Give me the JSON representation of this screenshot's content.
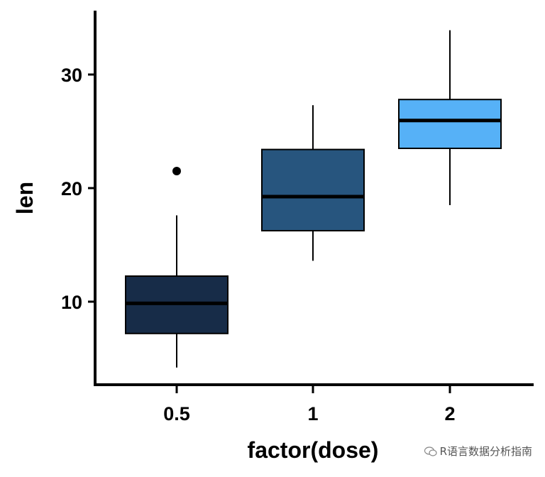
{
  "chart_data": {
    "type": "boxplot",
    "title": "",
    "xlabel": "factor(dose)",
    "ylabel": "len",
    "ylim": [
      2.5,
      36
    ],
    "yticks": [
      10,
      20,
      30
    ],
    "categories": [
      "0.5",
      "1",
      "2"
    ],
    "boxes": [
      {
        "category": "0.5",
        "whisker_low": 4.2,
        "q1": 7.2,
        "median": 9.85,
        "q3": 12.25,
        "whisker_high": 17.6,
        "outliers": [
          21.5
        ],
        "color": "#172c48"
      },
      {
        "category": "1",
        "whisker_low": 13.6,
        "q1": 16.25,
        "median": 19.25,
        "q3": 23.4,
        "whisker_high": 27.3,
        "outliers": [],
        "color": "#27557e"
      },
      {
        "category": "2",
        "whisker_low": 18.5,
        "q1": 23.5,
        "median": 25.95,
        "q3": 27.8,
        "whisker_high": 33.9,
        "outliers": [],
        "color": "#56b1f7"
      }
    ]
  },
  "watermark": {
    "text": "R语言数据分析指南",
    "icon": "wechat-icon"
  }
}
